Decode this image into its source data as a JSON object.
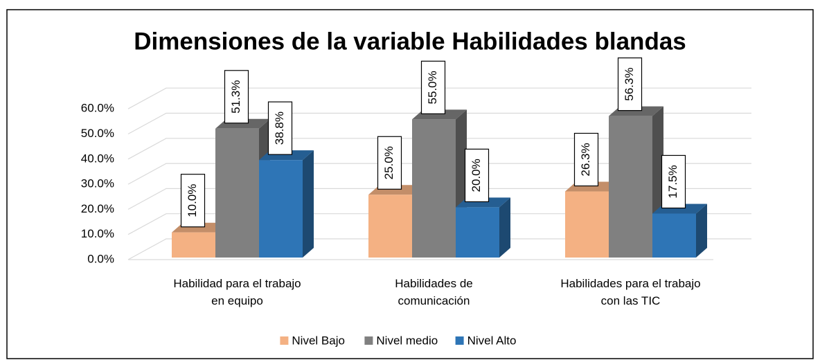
{
  "chart_data": {
    "type": "bar3d",
    "title": "Dimensiones de la variable Habilidades blandas",
    "categories": [
      "Habilidad para el trabajo\nen equipo",
      "Habilidades de\ncomunicación",
      "Habilidades para el trabajo\ncon las TIC"
    ],
    "series": [
      {
        "name": "Nivel Bajo",
        "color": "#f4b183",
        "values": [
          10.0,
          25.0,
          26.3
        ],
        "value_labels": [
          "10.0%",
          "25.0%",
          "26.3%"
        ]
      },
      {
        "name": "Nivel medio",
        "color": "#808080",
        "values": [
          51.3,
          55.0,
          56.3
        ],
        "value_labels": [
          "51.3%",
          "55.0%",
          "56.3%"
        ]
      },
      {
        "name": "Nivel Alto",
        "color": "#2e75b6",
        "values": [
          38.8,
          20.0,
          17.5
        ],
        "value_labels": [
          "38.8%",
          "20.0%",
          "17.5%"
        ]
      }
    ],
    "ylim": [
      0,
      60
    ],
    "yticks": [
      {
        "value": 0,
        "label": "0.0%"
      },
      {
        "value": 10,
        "label": "10.0%"
      },
      {
        "value": 20,
        "label": "20.0%"
      },
      {
        "value": 30,
        "label": "30.0%"
      },
      {
        "value": 40,
        "label": "40.0%"
      },
      {
        "value": 50,
        "label": "50.0%"
      },
      {
        "value": 60,
        "label": "60.0%"
      }
    ],
    "grid": true,
    "legend": "bottom"
  }
}
